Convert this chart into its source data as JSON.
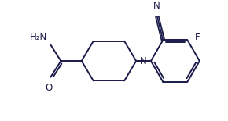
{
  "bg_color": "#ffffff",
  "line_color": "#1a1a4a",
  "text_color": "#1a1a4a",
  "label_N_pip": "N",
  "label_O": "O",
  "label_F": "F",
  "label_CN_N": "N",
  "label_NH2": "H₂N",
  "figsize": [
    2.9,
    1.55
  ],
  "dpi": 100,
  "lw": 1.4
}
